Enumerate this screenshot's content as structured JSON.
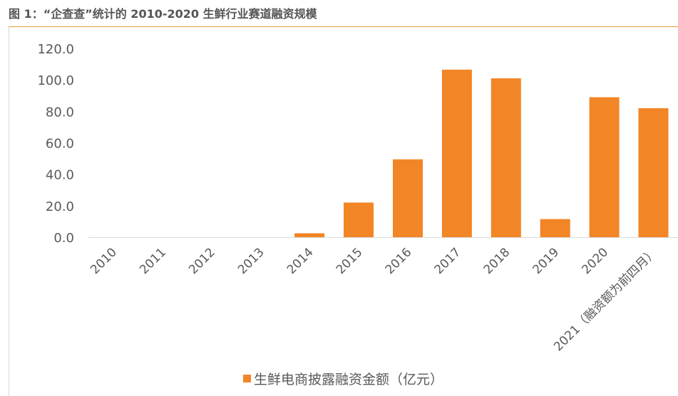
{
  "title": "图 1：“企查查”统计的 2010-2020 生鲜行业赛道融资规模",
  "chart_data": {
    "type": "bar",
    "categories": [
      "2010",
      "2011",
      "2012",
      "2013",
      "2014",
      "2015",
      "2016",
      "2017",
      "2018",
      "2019",
      "2020",
      "2021（融资额为前四月）"
    ],
    "series": [
      {
        "name": "生鲜电商披露融资金额（亿元）",
        "values": [
          0,
          0,
          0,
          0,
          2.5,
          22.0,
          49.5,
          106.5,
          101.0,
          11.5,
          89.0,
          82.0
        ],
        "color": "#f28526"
      }
    ],
    "yticks": [
      "0.0",
      "20.0",
      "40.0",
      "60.0",
      "80.0",
      "100.0",
      "120.0"
    ],
    "ylim": [
      0,
      120
    ],
    "grid": false,
    "legend": "bottom"
  }
}
